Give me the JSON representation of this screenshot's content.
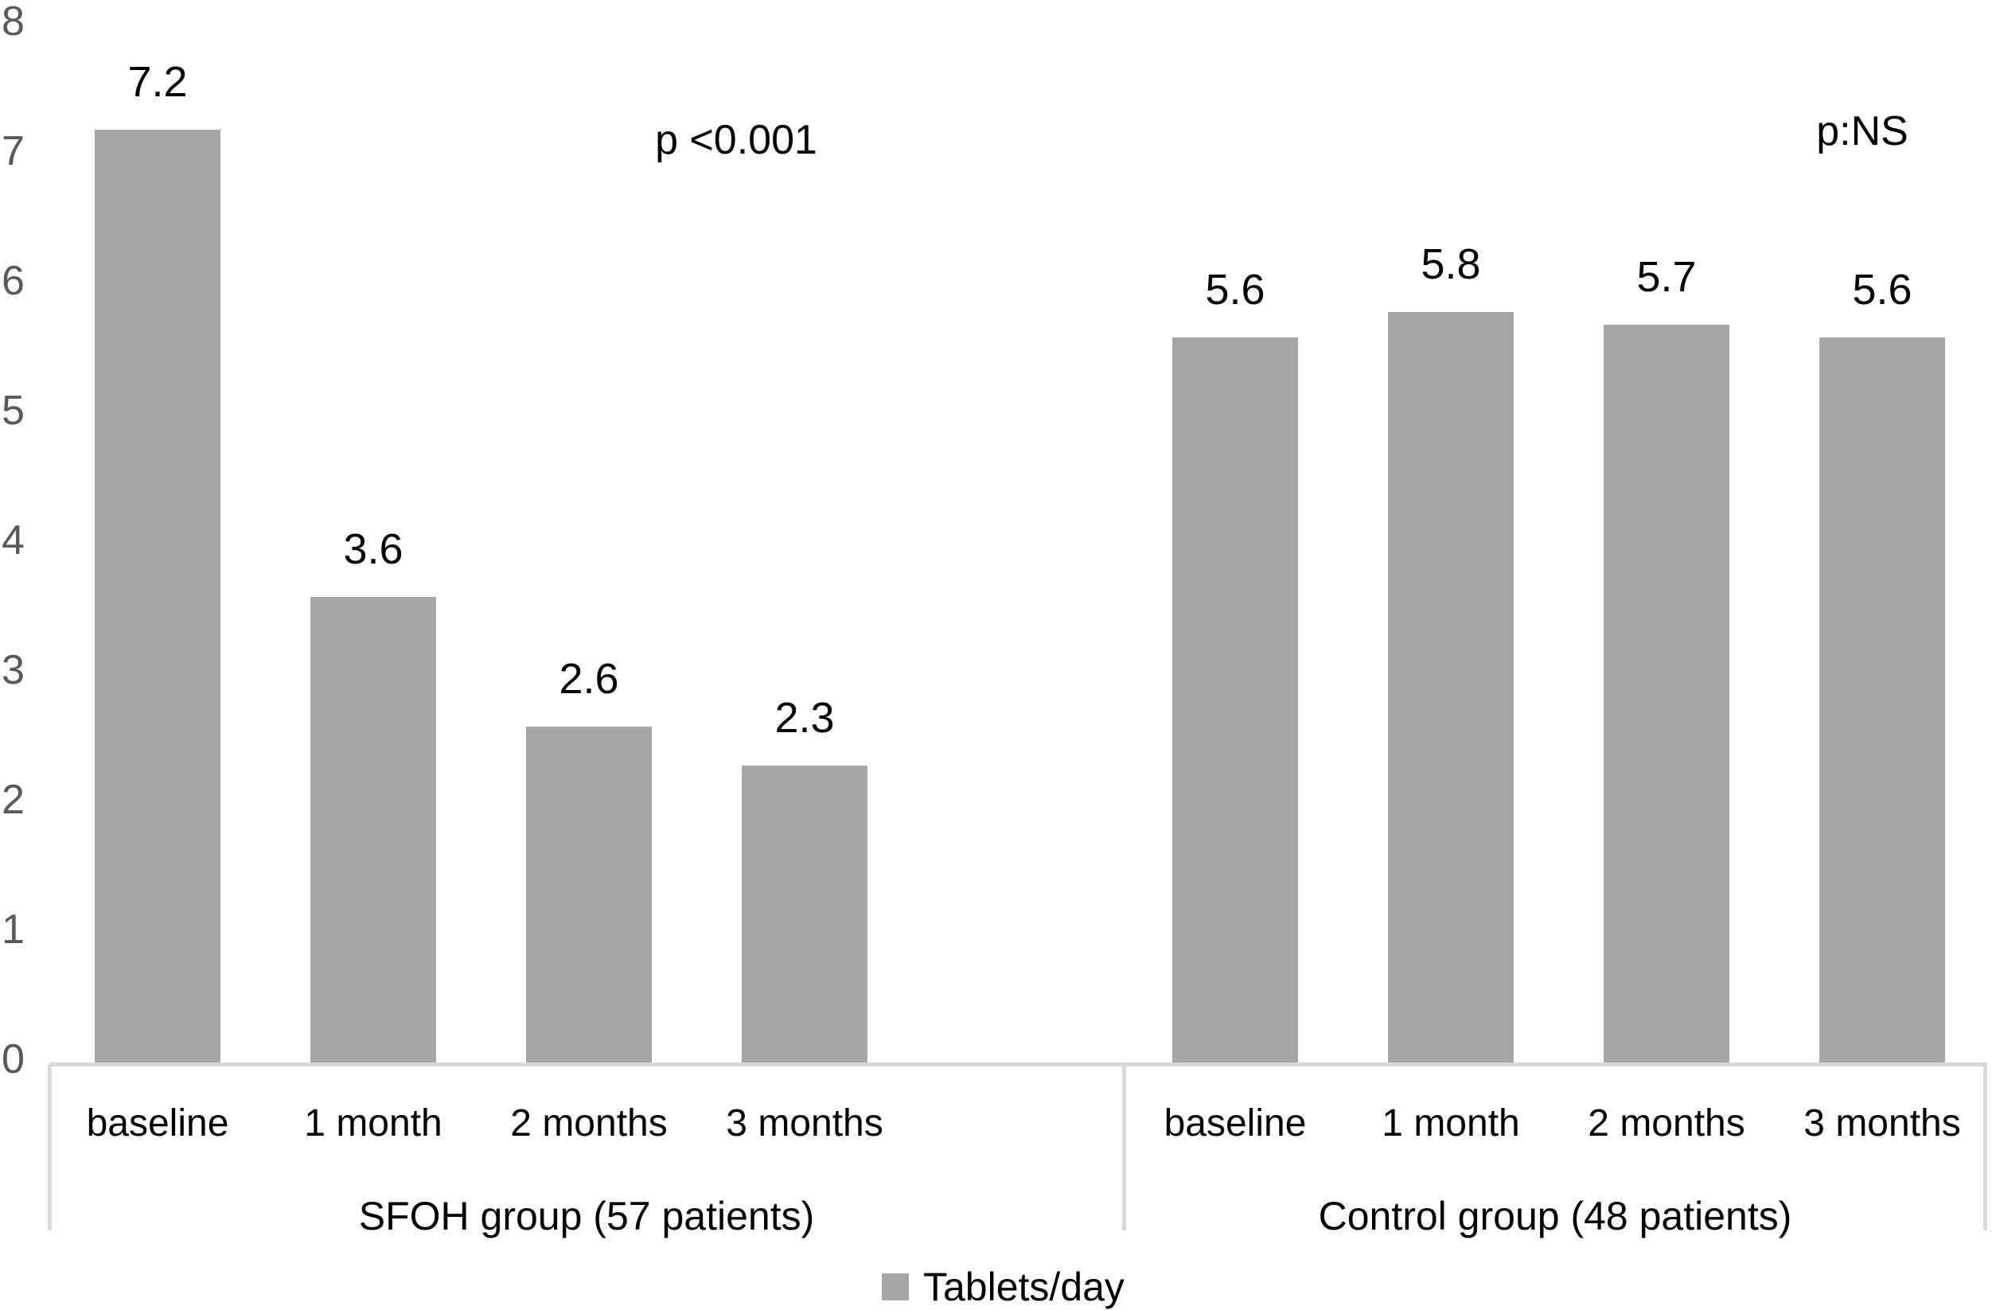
{
  "chart_data": {
    "type": "bar",
    "title": "",
    "xlabel": "",
    "ylabel": "",
    "ylim": [
      0,
      8
    ],
    "yticks": [
      0,
      1,
      2,
      3,
      4,
      5,
      6,
      7,
      8
    ],
    "grid": false,
    "bar_color": "#a6a6a6",
    "axis_line_color": "#d9d9d9",
    "tick_label_color": "#595959",
    "text_color": "#000000",
    "categories": [
      "baseline",
      "1 month",
      "2 months",
      "3 months"
    ],
    "groups": [
      {
        "label": "SFOH group (57 patients)",
        "annotation": "p <0.001",
        "values": [
          7.2,
          3.6,
          2.6,
          2.3
        ]
      },
      {
        "label": "Control group (48 patients)",
        "annotation": "p:NS",
        "values": [
          5.6,
          5.8,
          5.7,
          5.6
        ]
      }
    ],
    "legend": [
      {
        "label": "Tablets/day",
        "color": "#a6a6a6"
      }
    ],
    "legend_position": "bottom-center"
  }
}
